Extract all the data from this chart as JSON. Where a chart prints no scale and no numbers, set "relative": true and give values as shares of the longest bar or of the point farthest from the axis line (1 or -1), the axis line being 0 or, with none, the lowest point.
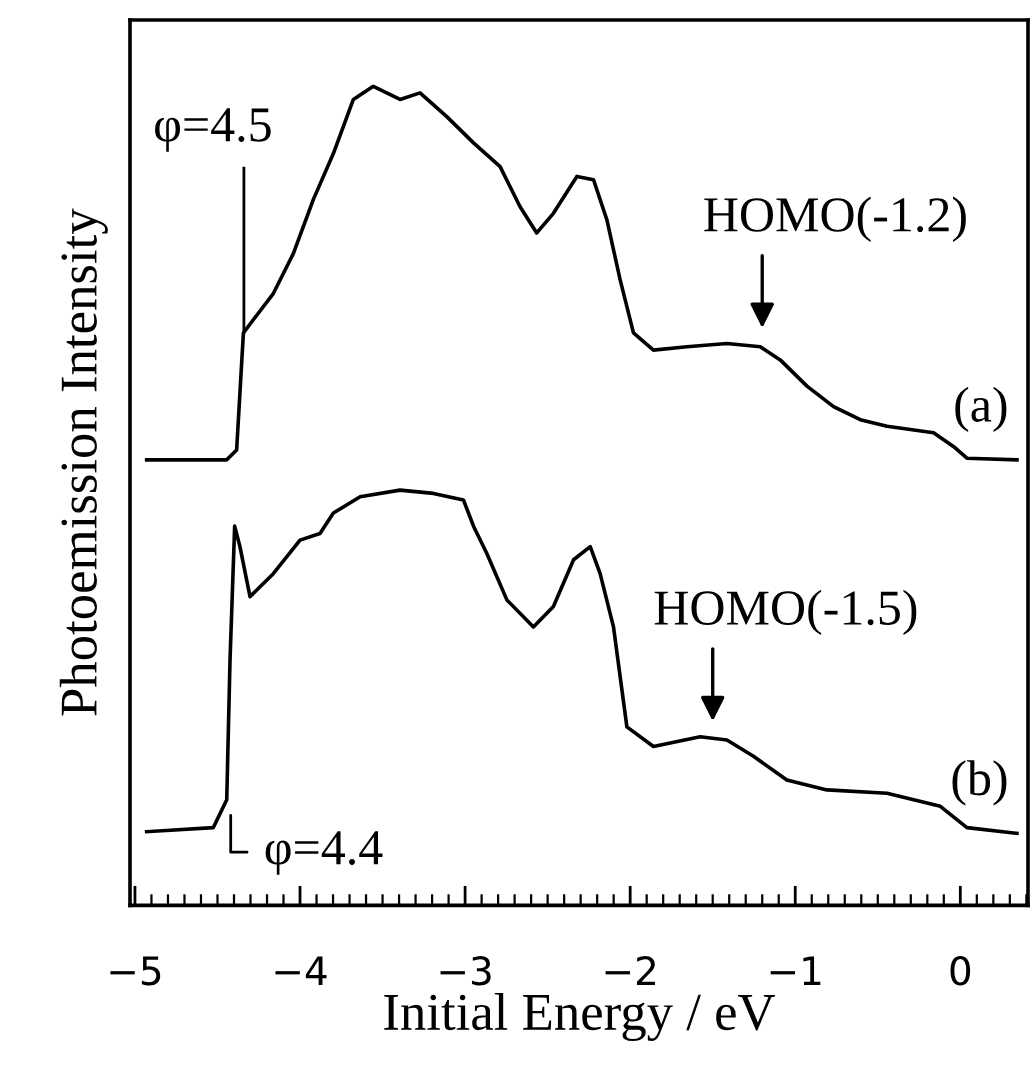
{
  "chart_data": {
    "type": "line",
    "relative": true,
    "xlabel": "Initial Energy / eV",
    "ylabel": "Photoemission Intensity",
    "xlim": [
      -5.03,
      0.41
    ],
    "xticks": [
      {
        "value": -5,
        "label": "−5"
      },
      {
        "value": -4,
        "label": "−4"
      },
      {
        "value": -3,
        "label": "−3"
      },
      {
        "value": -2,
        "label": "−2"
      },
      {
        "value": -1,
        "label": "−1"
      },
      {
        "value": 0,
        "label": "0"
      }
    ],
    "tick_labels": "x",
    "grid": false,
    "legend": false,
    "marker": "none",
    "line_style": "solid",
    "series": [
      {
        "name": "(a)",
        "color": "#000000",
        "x": [
          -4.929,
          -4.444,
          -4.384,
          -4.343,
          -4.283,
          -4.162,
          -4.04,
          -3.919,
          -3.798,
          -3.677,
          -3.556,
          -3.394,
          -3.273,
          -3.111,
          -2.949,
          -2.788,
          -2.667,
          -2.566,
          -2.465,
          -2.323,
          -2.222,
          -2.141,
          -2.061,
          -1.98,
          -1.859,
          -1.657,
          -1.414,
          -1.212,
          -1.091,
          -0.929,
          -0.768,
          -0.606,
          -0.444,
          -0.162,
          -0.04,
          0.04,
          0.343
        ],
        "values": [
          0.544,
          0.544,
          0.556,
          0.699,
          0.715,
          0.747,
          0.796,
          0.862,
          0.918,
          0.984,
          1.0,
          0.984,
          0.992,
          0.963,
          0.931,
          0.902,
          0.853,
          0.821,
          0.845,
          0.89,
          0.886,
          0.837,
          0.764,
          0.699,
          0.678,
          0.682,
          0.686,
          0.682,
          0.666,
          0.634,
          0.609,
          0.593,
          0.585,
          0.577,
          0.56,
          0.546,
          0.544
        ]
      },
      {
        "name": "(b)",
        "color": "#000000",
        "x": [
          -4.929,
          -4.525,
          -4.444,
          -4.424,
          -4.396,
          -4.364,
          -4.303,
          -4.162,
          -4.0,
          -3.879,
          -3.798,
          -3.636,
          -3.394,
          -3.192,
          -3.01,
          -2.949,
          -2.869,
          -2.747,
          -2.586,
          -2.465,
          -2.343,
          -2.242,
          -2.182,
          -2.101,
          -2.02,
          -1.859,
          -1.576,
          -1.414,
          -1.253,
          -1.051,
          -0.808,
          -0.444,
          -0.121,
          0.04,
          0.343
        ],
        "values": [
          0.09,
          0.095,
          0.129,
          0.3,
          0.463,
          0.438,
          0.377,
          0.405,
          0.446,
          0.454,
          0.479,
          0.499,
          0.507,
          0.503,
          0.495,
          0.463,
          0.43,
          0.373,
          0.34,
          0.365,
          0.422,
          0.438,
          0.405,
          0.34,
          0.218,
          0.194,
          0.206,
          0.202,
          0.182,
          0.153,
          0.141,
          0.137,
          0.121,
          0.095,
          0.088
        ]
      }
    ],
    "annotations": [
      {
        "text": "φ=4.5",
        "x": -4.34,
        "y": 0.7
      },
      {
        "text": "HOMO(-1.2)",
        "x": -1.2,
        "y": 0.685
      },
      {
        "text": "HOMO(-1.5)",
        "x": -1.5,
        "y": 0.205
      },
      {
        "text": "φ=4.4",
        "x": -4.42,
        "y": 0.11
      }
    ]
  }
}
